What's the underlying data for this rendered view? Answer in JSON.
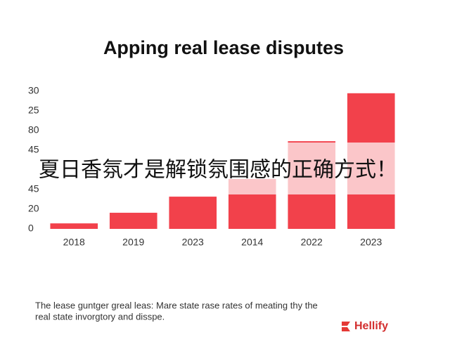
{
  "chart_data": {
    "type": "bar",
    "title": "Apping real lease disputes",
    "categories": [
      "2018",
      "2019",
      "2023",
      "2014",
      "2022",
      "2023"
    ],
    "values": [
      1.4,
      4.1,
      8.2,
      12.7,
      22.3,
      34.5
    ],
    "color": "#f2414b",
    "ylim": [
      0,
      35
    ],
    "yticks": [
      0,
      {
        "value": 5,
        "label": "20"
      },
      {
        "value": 10,
        "label": "45"
      },
      {
        "value": 20,
        "label": "45"
      },
      {
        "value": 25,
        "label": "80"
      },
      {
        "value": 30,
        "label": "25"
      },
      {
        "value": 35,
        "label": "30"
      }
    ],
    "grid": false
  },
  "overlay_text": "夏日香氛才是解锁氛围感的正确方式！",
  "caption": [
    "The lease guntger greal leas: Mare state rase rates of meating thy the",
    "real state invorgtory and disspe."
  ],
  "brand": "Hellify"
}
